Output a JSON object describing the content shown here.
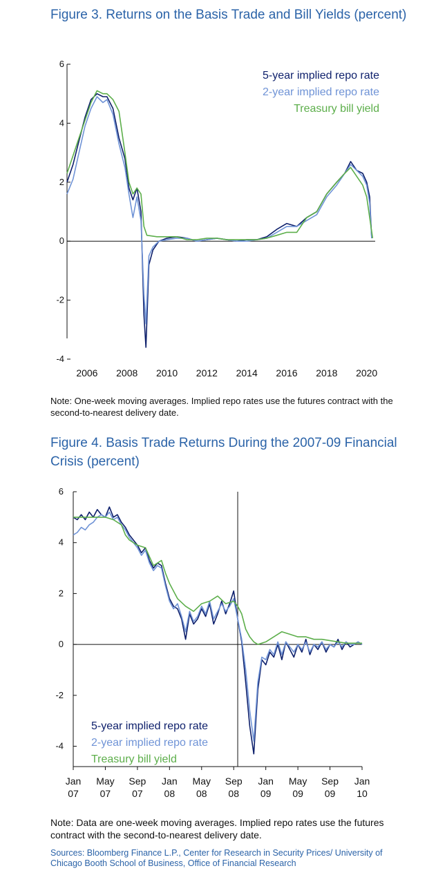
{
  "figure3": {
    "title": "Figure 3. Returns on the Basis Trade and Bill Yields (percent)",
    "note": "Note: One-week moving averages. Implied repo rates use the futures contract with the second-to-nearest delivery date."
  },
  "figure4": {
    "title": "Figure 4. Basis Trade Returns During the 2007-09 Financial Crisis (percent)",
    "note": "Note: Data are one-week moving averages. Implied repo rates use the futures contract with the second-to-nearest delivery date."
  },
  "sources": "Sources: Bloomberg Finance L.P., Center for Research in Security Prices/ University of Chicago Booth School of Business, Office of Financial Research",
  "colors": {
    "five_year": "#0d1f6b",
    "two_year": "#6f93d6",
    "tbill": "#5cae4a",
    "title": "#2b63a8"
  },
  "chart_data": [
    {
      "type": "line",
      "ylim": [
        -4,
        6
      ],
      "yticks": [
        "6",
        "4",
        "2",
        "0",
        "-2",
        "-4"
      ],
      "xlim": [
        2005,
        2020.6
      ],
      "xticks": [
        "2006",
        "2008",
        "2010",
        "2012",
        "2014",
        "2016",
        "2018",
        "2020"
      ],
      "legend_position": "top-right",
      "series": [
        {
          "name": "5-year implied repo rate",
          "x": [
            2005.0,
            2005.3,
            2005.6,
            2005.9,
            2006.2,
            2006.5,
            2006.8,
            2007.0,
            2007.3,
            2007.6,
            2007.9,
            2008.1,
            2008.3,
            2008.5,
            2008.7,
            2008.85,
            2008.95,
            2009.1,
            2009.3,
            2009.6,
            2010.0,
            2010.5,
            2011.0,
            2011.5,
            2012.0,
            2012.5,
            2013.0,
            2013.5,
            2014.0,
            2014.5,
            2015.0,
            2015.5,
            2016.0,
            2016.5,
            2017.0,
            2017.5,
            2018.0,
            2018.5,
            2018.9,
            2019.2,
            2019.5,
            2019.8,
            2020.0,
            2020.15,
            2020.25
          ],
          "y": [
            2.0,
            2.6,
            3.4,
            4.2,
            4.8,
            5.0,
            4.9,
            4.9,
            4.5,
            3.5,
            2.8,
            1.8,
            1.4,
            1.8,
            1.0,
            -2.5,
            -3.6,
            -0.8,
            -0.3,
            0.0,
            0.1,
            0.15,
            0.1,
            0.0,
            0.05,
            0.1,
            0.05,
            0.0,
            0.05,
            0.05,
            0.15,
            0.4,
            0.6,
            0.5,
            0.8,
            1.0,
            1.6,
            2.0,
            2.3,
            2.7,
            2.4,
            2.3,
            2.0,
            1.5,
            0.1
          ]
        },
        {
          "name": "2-year implied repo rate",
          "x": [
            2005.0,
            2005.3,
            2005.6,
            2005.9,
            2006.2,
            2006.5,
            2006.8,
            2007.0,
            2007.3,
            2007.6,
            2007.9,
            2008.1,
            2008.3,
            2008.5,
            2008.7,
            2008.85,
            2008.95,
            2009.1,
            2009.3,
            2009.6,
            2010.0,
            2010.5,
            2011.0,
            2011.5,
            2012.0,
            2012.5,
            2013.0,
            2013.5,
            2014.0,
            2014.5,
            2015.0,
            2015.5,
            2016.0,
            2016.5,
            2017.0,
            2017.5,
            2018.0,
            2018.5,
            2018.9,
            2019.2,
            2019.5,
            2019.8,
            2020.0,
            2020.15,
            2020.25
          ],
          "y": [
            1.6,
            2.1,
            3.0,
            3.9,
            4.5,
            4.9,
            4.7,
            4.8,
            4.3,
            3.3,
            2.5,
            1.6,
            0.8,
            1.5,
            0.7,
            -1.8,
            -2.8,
            -0.5,
            -0.2,
            0.0,
            0.05,
            0.1,
            0.1,
            0.0,
            0.05,
            0.1,
            0.05,
            0.0,
            0.0,
            0.05,
            0.1,
            0.3,
            0.5,
            0.5,
            0.7,
            0.9,
            1.5,
            1.9,
            2.3,
            2.6,
            2.4,
            2.2,
            1.9,
            1.3,
            0.1
          ]
        },
        {
          "name": "Treasury bill yield",
          "x": [
            2005.0,
            2005.3,
            2005.6,
            2005.9,
            2006.2,
            2006.5,
            2006.8,
            2007.0,
            2007.3,
            2007.6,
            2007.9,
            2008.1,
            2008.3,
            2008.5,
            2008.7,
            2008.85,
            2009.0,
            2009.5,
            2010.0,
            2010.5,
            2011.0,
            2011.5,
            2012.0,
            2012.5,
            2013.0,
            2013.5,
            2014.0,
            2014.5,
            2015.0,
            2015.5,
            2016.0,
            2016.5,
            2017.0,
            2017.5,
            2018.0,
            2018.5,
            2018.9,
            2019.2,
            2019.5,
            2019.8,
            2020.0,
            2020.15,
            2020.3
          ],
          "y": [
            2.3,
            2.9,
            3.5,
            4.1,
            4.7,
            5.1,
            5.0,
            5.0,
            4.8,
            4.4,
            3.0,
            2.0,
            1.6,
            1.8,
            1.6,
            0.5,
            0.2,
            0.15,
            0.15,
            0.15,
            0.05,
            0.05,
            0.1,
            0.1,
            0.05,
            0.05,
            0.05,
            0.05,
            0.1,
            0.2,
            0.3,
            0.3,
            0.8,
            1.0,
            1.6,
            2.0,
            2.3,
            2.5,
            2.2,
            1.9,
            1.5,
            0.8,
            0.1
          ]
        }
      ]
    },
    {
      "type": "line",
      "ylim": [
        -4.8,
        6
      ],
      "yticks": [
        "6",
        "4",
        "2",
        "0",
        "-2",
        "-4"
      ],
      "xticks": [
        "Jan 07",
        "May 07",
        "Sep 07",
        "Jan 08",
        "May 08",
        "Sep 08",
        "Jan 09",
        "May 09",
        "Sep 09",
        "Jan 10"
      ],
      "xtick_months": [
        0,
        4,
        8,
        12,
        16,
        20,
        24,
        28,
        32,
        36
      ],
      "xlim_months": [
        0,
        36
      ],
      "annotation_vline_month": 20.5,
      "legend_position": "bottom-left",
      "series": [
        {
          "name": "5-year implied repo rate",
          "x": [
            0,
            0.5,
            1,
            1.5,
            2,
            2.5,
            3,
            3.5,
            4,
            4.5,
            5,
            5.5,
            6,
            6.5,
            7,
            7.5,
            8,
            8.5,
            9,
            9.5,
            10,
            10.5,
            11,
            11.5,
            12,
            12.5,
            13,
            13.5,
            14,
            14.5,
            15,
            15.5,
            16,
            16.5,
            17,
            17.5,
            18,
            18.5,
            19,
            19.5,
            20,
            20.5,
            21,
            21.5,
            22,
            22.5,
            23,
            23.5,
            24,
            24.5,
            25,
            25.5,
            26,
            26.5,
            27,
            27.5,
            28,
            28.5,
            29,
            29.5,
            30,
            30.5,
            31,
            31.5,
            32,
            32.5,
            33,
            33.5,
            34,
            34.5,
            35,
            35.5,
            36
          ],
          "y": [
            5.0,
            4.9,
            5.1,
            4.9,
            5.2,
            5.0,
            5.3,
            5.1,
            5.0,
            5.4,
            5.0,
            5.1,
            4.8,
            4.6,
            4.3,
            4.1,
            3.9,
            3.6,
            3.8,
            3.3,
            3.0,
            3.2,
            3.1,
            2.4,
            1.8,
            1.5,
            1.4,
            1.0,
            0.2,
            1.2,
            0.8,
            1.0,
            1.4,
            1.1,
            1.6,
            0.8,
            1.2,
            1.7,
            1.2,
            1.6,
            2.1,
            1.0,
            0.1,
            -1.5,
            -3.2,
            -4.3,
            -1.8,
            -0.6,
            -0.8,
            -0.3,
            -0.5,
            0.0,
            -0.6,
            0.1,
            -0.2,
            -0.5,
            0.0,
            -0.3,
            0.2,
            -0.4,
            0.0,
            -0.2,
            0.1,
            -0.3,
            0.0,
            -0.1,
            0.2,
            -0.2,
            0.1,
            -0.1,
            0.0,
            0.1,
            0.0
          ]
        },
        {
          "name": "2-year implied repo rate",
          "x": [
            0,
            0.5,
            1,
            1.5,
            2,
            2.5,
            3,
            3.5,
            4,
            4.5,
            5,
            5.5,
            6,
            6.5,
            7,
            7.5,
            8,
            8.5,
            9,
            9.5,
            10,
            10.5,
            11,
            11.5,
            12,
            12.5,
            13,
            13.5,
            14,
            14.5,
            15,
            15.5,
            16,
            16.5,
            17,
            17.5,
            18,
            18.5,
            19,
            19.5,
            20,
            20.5,
            21,
            21.5,
            22,
            22.5,
            23,
            23.5,
            24,
            24.5,
            25,
            25.5,
            26,
            26.5,
            27,
            27.5,
            28,
            28.5,
            29,
            29.5,
            30,
            30.5,
            31,
            31.5,
            32,
            32.5,
            33,
            33.5,
            34,
            34.5,
            35,
            35.5,
            36
          ],
          "y": [
            4.3,
            4.4,
            4.6,
            4.5,
            4.7,
            4.8,
            5.0,
            5.1,
            5.0,
            5.2,
            4.9,
            5.0,
            4.7,
            4.5,
            4.2,
            4.0,
            3.8,
            3.5,
            3.7,
            3.2,
            2.9,
            3.1,
            3.0,
            2.3,
            1.7,
            1.4,
            1.6,
            1.1,
            0.5,
            1.3,
            0.9,
            1.1,
            1.5,
            1.2,
            1.7,
            1.0,
            1.3,
            1.6,
            1.3,
            1.5,
            1.8,
            1.0,
            0.2,
            -1.0,
            -2.6,
            -3.8,
            -1.5,
            -0.5,
            -0.6,
            -0.2,
            -0.4,
            0.1,
            -0.4,
            0.1,
            -0.1,
            -0.3,
            0.0,
            -0.2,
            0.1,
            -0.3,
            0.0,
            -0.1,
            0.1,
            -0.2,
            0.0,
            -0.1,
            0.1,
            -0.1,
            0.1,
            0.0,
            0.0,
            0.1,
            0.0
          ]
        },
        {
          "name": "Treasury bill yield",
          "x": [
            0,
            1,
            2,
            3,
            4,
            5,
            6,
            6.5,
            7,
            8,
            9,
            10,
            11,
            11.5,
            12,
            13,
            14,
            15,
            16,
            17,
            18,
            19,
            20,
            20.5,
            21,
            21.5,
            22,
            22.5,
            23,
            24,
            25,
            26,
            27,
            28,
            29,
            30,
            31,
            32,
            33,
            34,
            35,
            36
          ],
          "y": [
            5.0,
            5.0,
            5.0,
            5.0,
            5.0,
            4.9,
            4.7,
            4.3,
            4.1,
            3.9,
            3.8,
            3.1,
            3.3,
            2.8,
            2.4,
            1.8,
            1.5,
            1.3,
            1.6,
            1.7,
            1.9,
            1.6,
            1.7,
            1.5,
            1.2,
            0.6,
            0.3,
            0.1,
            0.0,
            0.1,
            0.3,
            0.5,
            0.4,
            0.3,
            0.3,
            0.2,
            0.2,
            0.15,
            0.1,
            0.05,
            0.05,
            0.05
          ]
        }
      ]
    }
  ]
}
